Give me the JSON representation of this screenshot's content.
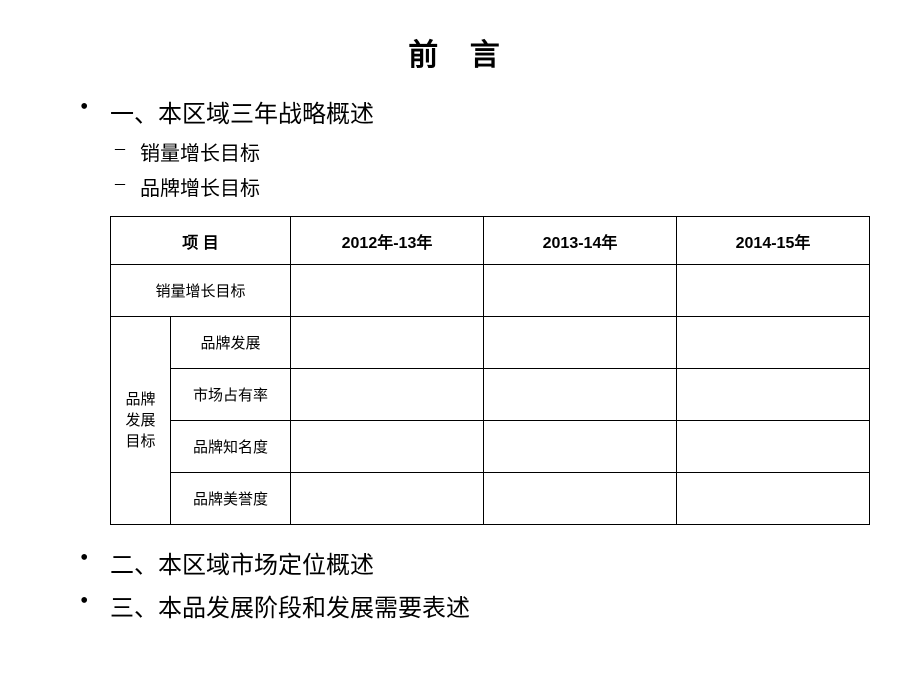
{
  "title": "前 言",
  "bullets": {
    "item1": "一、本区域三年战略概述",
    "item1_sub1": "销量增长目标",
    "item1_sub2": "品牌增长目标",
    "item2": "二、本区域市场定位概述",
    "item3": "三、本品发展阶段和发展需要表述"
  },
  "table": {
    "headers": {
      "project": "项 目",
      "year1": "2012年-13年",
      "year2": "2013-14年",
      "year3": "2014-15年"
    },
    "rows": {
      "sales_target": "销量增长目标",
      "brand_group_label": "品牌发展目标",
      "brand_dev": "品牌发展",
      "market_share": "市场占有率",
      "brand_awareness": "品牌知名度",
      "brand_reputation": "品牌美誉度"
    },
    "cells": {
      "r1c1": "",
      "r1c2": "",
      "r1c3": "",
      "r2c1": "",
      "r2c2": "",
      "r2c3": "",
      "r3c1": "",
      "r3c2": "",
      "r3c3": "",
      "r4c1": "",
      "r4c2": "",
      "r4c3": "",
      "r5c1": "",
      "r5c2": "",
      "r5c3": ""
    }
  },
  "style": {
    "background_color": "#ffffff",
    "text_color": "#000000",
    "border_color": "#000000",
    "title_fontsize": 30,
    "l1_fontsize": 24,
    "l2_fontsize": 20,
    "table_header_fontsize": 16,
    "table_cell_fontsize": 15
  }
}
